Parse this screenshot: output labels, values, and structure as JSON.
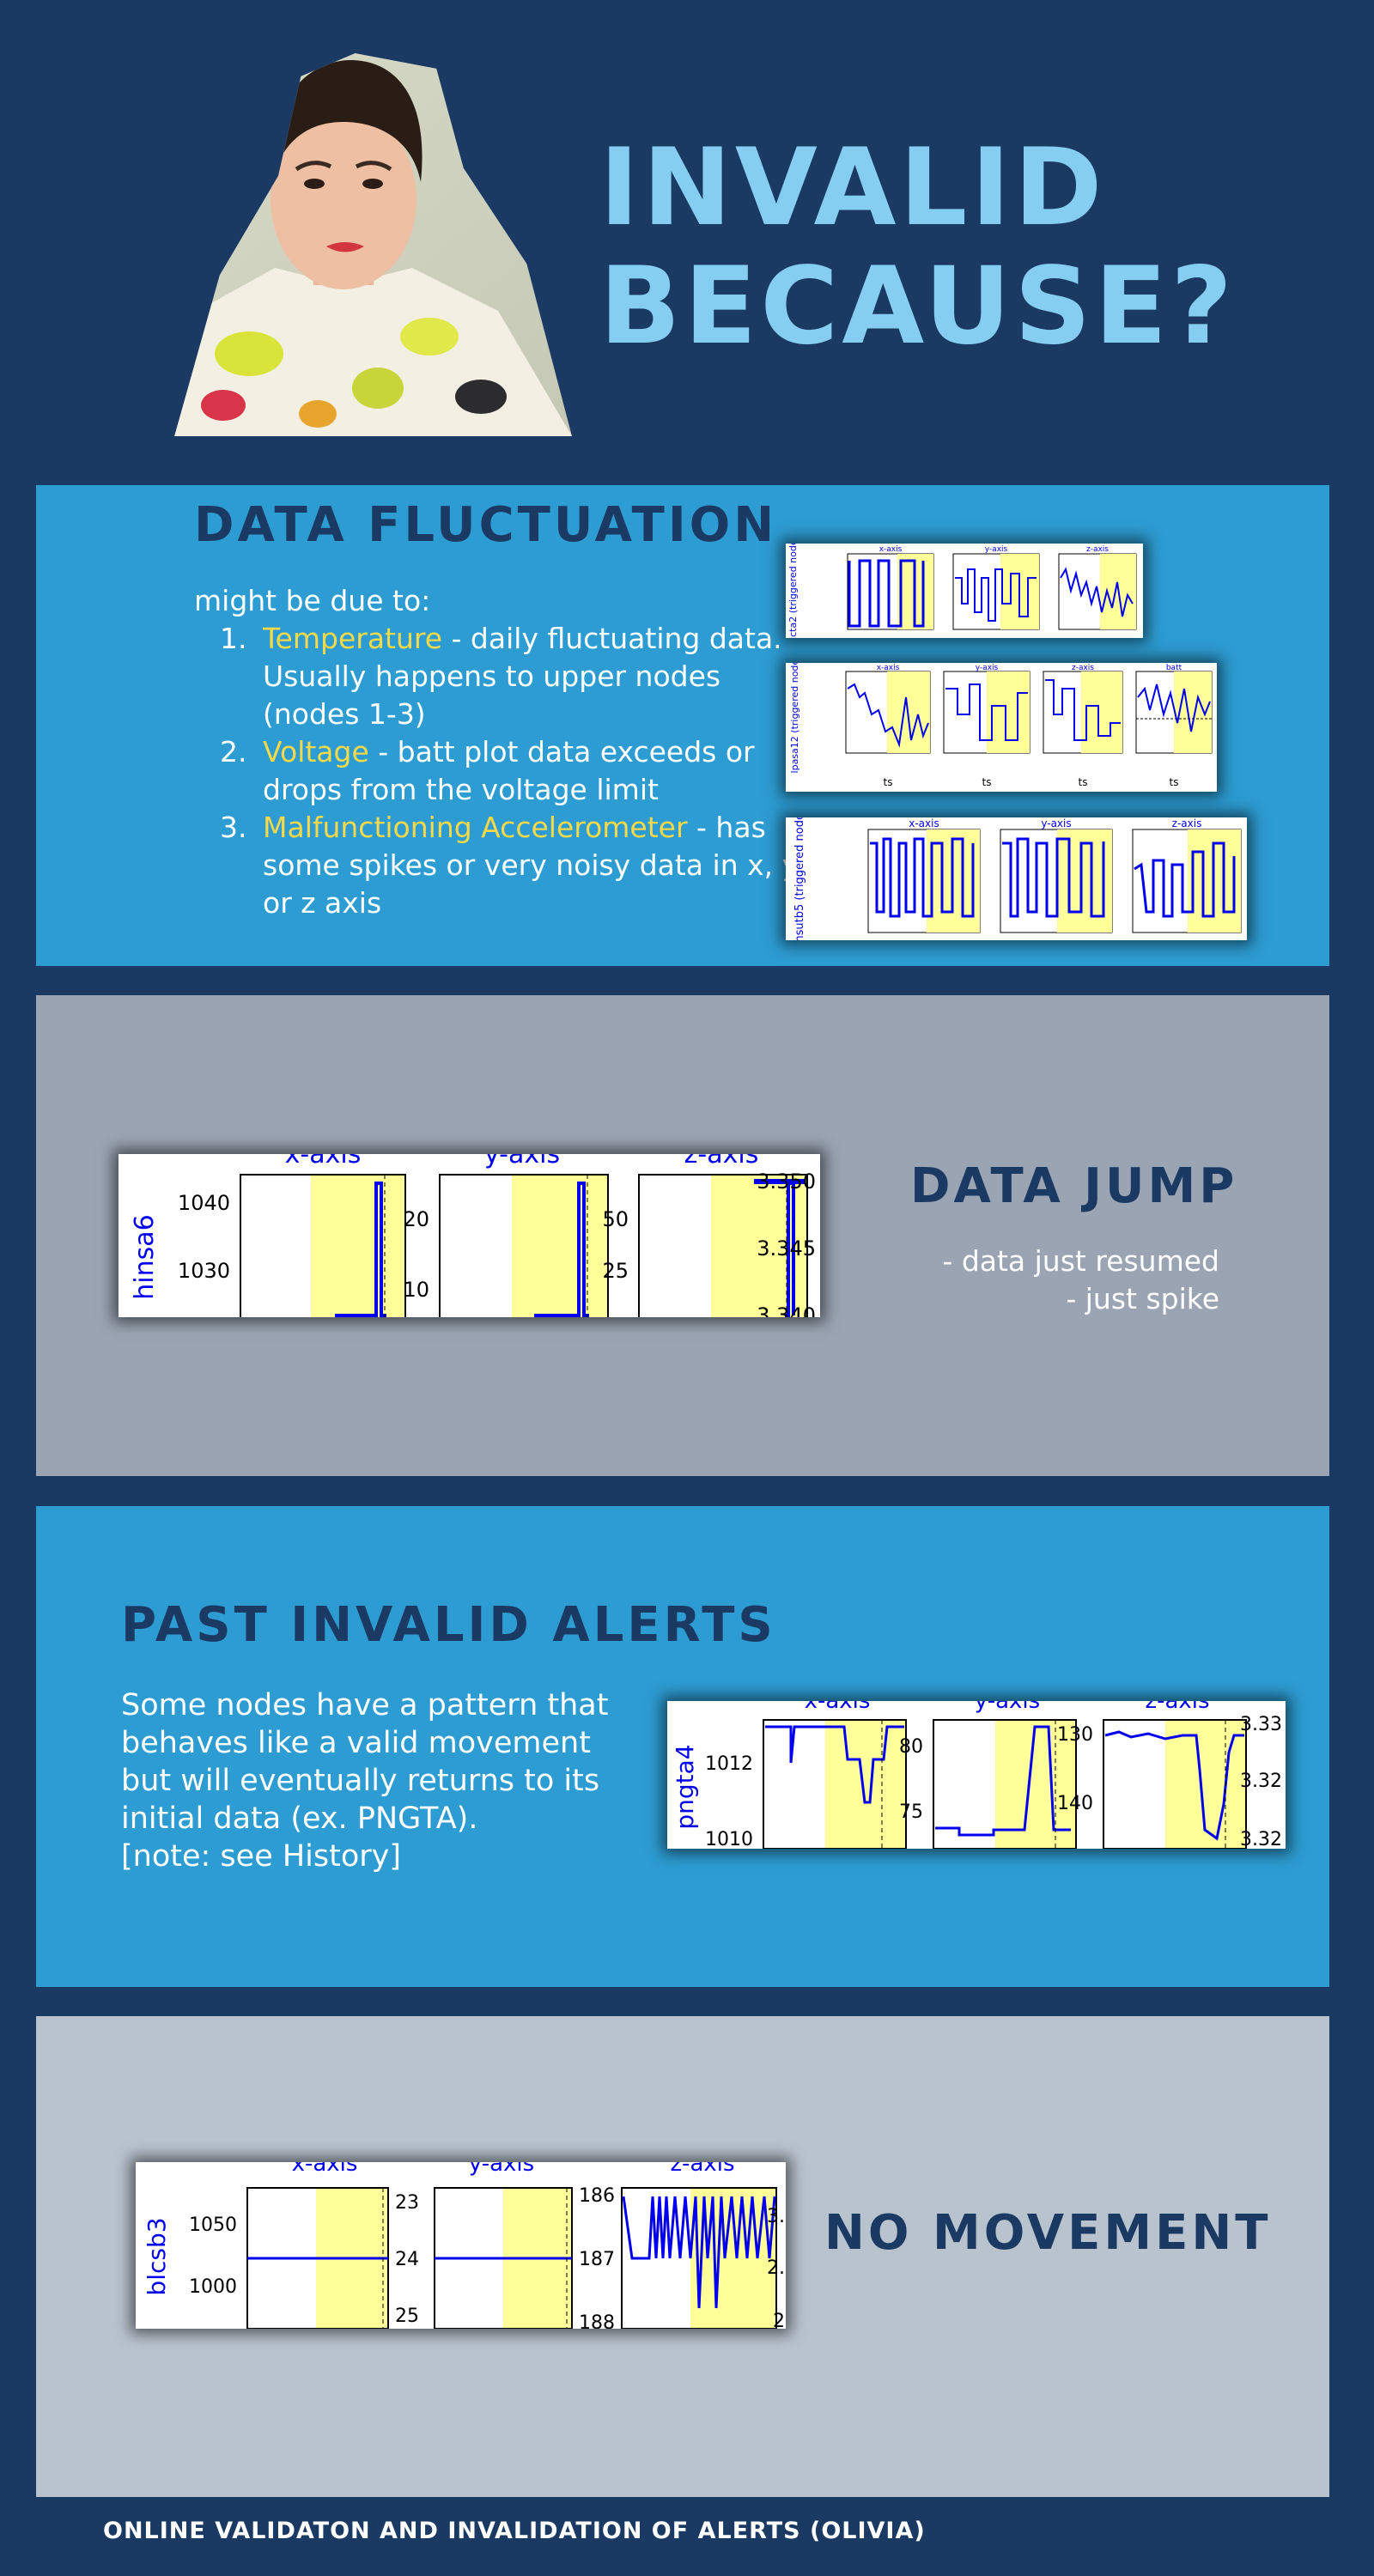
{
  "title": {
    "line1": "INVALID",
    "line2": "BECAUSE?"
  },
  "data_fluctuation": {
    "heading": "DATA FLUCTUATION",
    "intro": "might be due to:",
    "causes": [
      {
        "keyword": "Temperature",
        "text": " - daily fluctuating data. Usually happens to upper nodes (nodes 1-3)"
      },
      {
        "keyword": "Voltage",
        "text": " - batt plot data exceeds or drops from the voltage limit"
      },
      {
        "keyword": "Malfunctioning Accelerometer",
        "text": " - has some spikes or very noisy data in x, y, or z axis"
      }
    ],
    "charts": [
      {
        "ylabel": "bicta2 (triggered node)",
        "panels": [
          "x-axis",
          "y-axis",
          "z-axis"
        ]
      },
      {
        "ylabel": "lpasa12 (triggered node)",
        "panels": [
          "x-axis",
          "y-axis",
          "z-axis",
          "batt"
        ],
        "xlabel": "ts"
      },
      {
        "ylabel": "msutb5 (triggered node)",
        "panels": [
          "x-axis",
          "y-axis",
          "z-axis"
        ]
      }
    ]
  },
  "data_jump": {
    "heading": "DATA JUMP",
    "notes": [
      "- data just resumed",
      "- just spike"
    ],
    "chart": {
      "ylabel": "hinsa6",
      "panels": [
        {
          "title": "x-axis",
          "ticks": [
            "1040",
            "1030"
          ]
        },
        {
          "title": "y-axis",
          "ticks": [
            "20",
            "10"
          ]
        },
        {
          "title": "z-axis",
          "ticks": [
            "50",
            "25"
          ],
          "right_ticks": [
            "3.350",
            "3.345",
            "3.340"
          ]
        }
      ]
    }
  },
  "past_invalid": {
    "heading": "PAST INVALID ALERTS",
    "lines": [
      "Some nodes have a pattern that",
      "behaves like a valid movement",
      "but will eventually returns to its",
      "initial data (ex. PNGTA).",
      "[note: see History]"
    ],
    "chart": {
      "ylabel": "pngta4",
      "panels": [
        {
          "title": "x-axis",
          "ticks": [
            "1012",
            "1010"
          ]
        },
        {
          "title": "y-axis",
          "ticks": [
            "80",
            "75"
          ]
        },
        {
          "title": "z-axis",
          "ticks": [
            "130",
            "140"
          ],
          "right_ticks": [
            "3.33",
            "3.32",
            "3.32"
          ]
        }
      ]
    }
  },
  "no_movement": {
    "heading": "NO MOVEMENT",
    "chart": {
      "ylabel": "blcsb3",
      "panels": [
        {
          "title": "x-axis",
          "ticks": [
            "1050",
            "1000"
          ],
          "right_ticks": [
            "23",
            "24",
            "25"
          ]
        },
        {
          "title": "y-axis",
          "ticks": [],
          "right_ticks": [
            "186",
            "187",
            "188"
          ]
        },
        {
          "title": "z-axis",
          "ticks": [],
          "right_ticks": [
            "3.",
            "2.",
            "2"
          ]
        }
      ]
    }
  },
  "footer": "ONLINE VALIDATON AND INVALIDATION OF ALERTS (OLIVIA)",
  "colors": {
    "background": "#1b3a63",
    "panel_blue": "#2d9cd2",
    "panel_gray": "#9aa4b2",
    "panel_light_gray": "#b9c3ce",
    "title": "#86cdf2",
    "highlight": "#f7d94a",
    "plot_line": "#0000ee",
    "plot_highlight_band": "#ffff99"
  }
}
